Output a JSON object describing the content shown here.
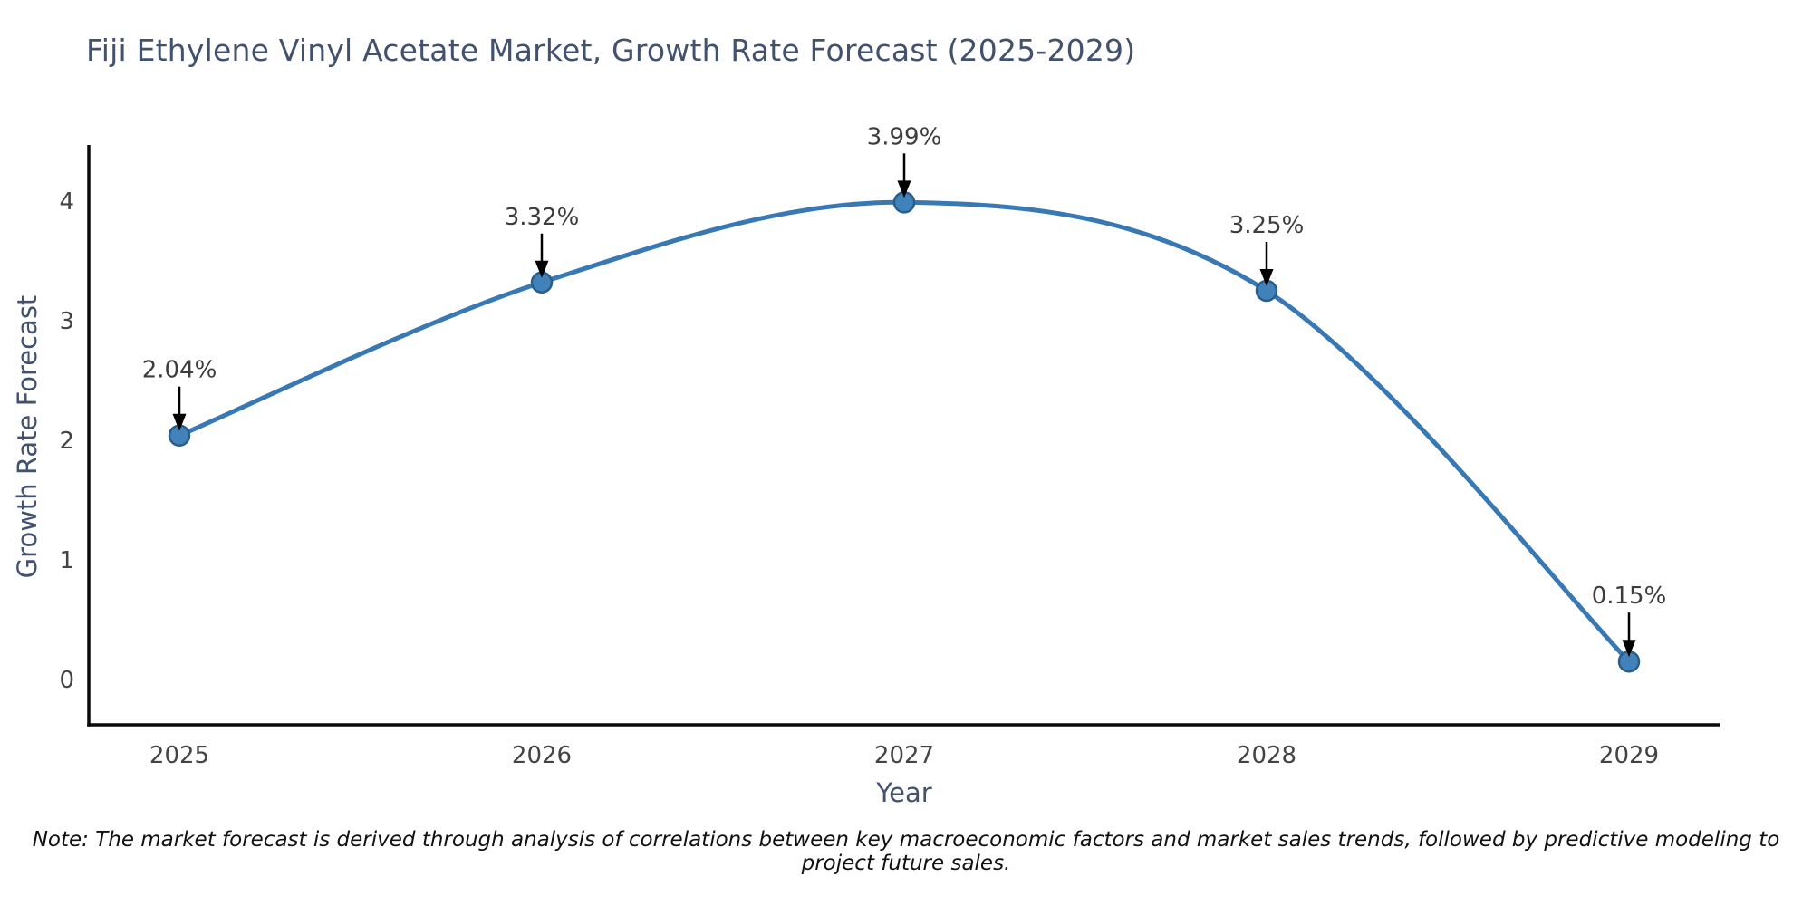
{
  "page": {
    "title": "Fiji Ethylene Vinyl Acetate Market, Growth Rate Forecast (2025-2029)",
    "note": "Note: The market forecast is derived through analysis of correlations between key macroeconomic factors and market sales trends, followed by predictive modeling to project future sales."
  },
  "chart_data": {
    "type": "line",
    "title": "Fiji Ethylene Vinyl Acetate Market, Growth Rate Forecast (2025-2029)",
    "categories": [
      "2025",
      "2026",
      "2027",
      "2028",
      "2029"
    ],
    "series": [
      {
        "name": "Growth Rate Forecast",
        "values": [
          2.04,
          3.32,
          3.99,
          3.25,
          0.15
        ],
        "point_labels": [
          "2.04%",
          "3.32%",
          "3.99%",
          "3.25%",
          "0.15%"
        ]
      }
    ],
    "xlabel": "Year",
    "ylabel": "Growth Rate Forecast",
    "yticks": [
      0,
      1,
      2,
      3,
      4
    ],
    "ylim": [
      -0.4,
      4.5
    ],
    "grid": false,
    "legend_position": "none",
    "line_shape": "spline",
    "annotation_style": "black-arrow-down-to-point",
    "colors": {
      "line": "#3878b4",
      "marker_fill": "#4282ba",
      "marker_edge": "#2a5d88",
      "axis": "#0a0a0a",
      "title_text": "#42526e",
      "tick_text": "#444444",
      "annotation_text": "#3d3d3d",
      "arrow": "#000000",
      "background": "#ffffff"
    }
  }
}
